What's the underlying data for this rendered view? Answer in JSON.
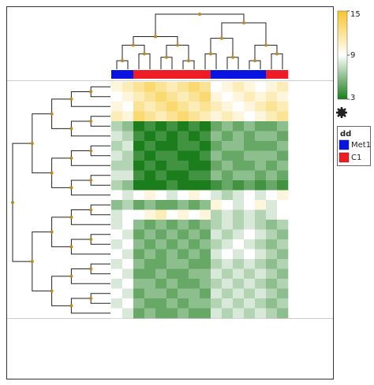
{
  "chart_data": {
    "type": "heatmap",
    "matrix": [
      [
        10,
        11,
        12,
        13,
        12,
        11,
        12,
        13,
        12,
        9,
        10,
        11,
        10,
        9,
        10,
        11
      ],
      [
        9,
        10,
        11,
        12,
        13,
        12,
        11,
        12,
        13,
        10,
        9,
        10,
        11,
        10,
        11,
        10
      ],
      [
        10,
        9,
        12,
        11,
        12,
        13,
        12,
        11,
        12,
        11,
        10,
        9,
        10,
        11,
        12,
        11
      ],
      [
        11,
        10,
        13,
        12,
        11,
        12,
        13,
        12,
        11,
        10,
        11,
        10,
        9,
        10,
        11,
        12
      ],
      [
        7,
        6,
        3,
        4,
        3,
        4,
        3,
        4,
        3,
        5,
        6,
        5,
        6,
        5,
        5,
        6
      ],
      [
        8,
        7,
        4,
        3,
        4,
        3,
        4,
        3,
        4,
        6,
        5,
        6,
        5,
        6,
        6,
        5
      ],
      [
        7,
        8,
        3,
        4,
        3,
        3,
        4,
        4,
        3,
        5,
        6,
        6,
        5,
        5,
        5,
        6
      ],
      [
        8,
        7,
        4,
        3,
        4,
        4,
        3,
        3,
        4,
        6,
        5,
        5,
        6,
        6,
        6,
        5
      ],
      [
        7,
        7,
        3,
        4,
        3,
        4,
        4,
        3,
        3,
        5,
        6,
        5,
        5,
        6,
        5,
        6
      ],
      [
        8,
        8,
        4,
        3,
        4,
        3,
        3,
        4,
        4,
        6,
        5,
        6,
        6,
        5,
        6,
        5
      ],
      [
        7,
        6,
        3,
        3,
        3,
        4,
        3,
        3,
        3,
        4,
        5,
        4,
        5,
        4,
        5,
        4
      ],
      [
        9,
        8,
        9,
        10,
        9,
        8,
        9,
        10,
        9,
        8,
        7,
        8,
        9,
        8,
        9,
        10
      ],
      [
        6,
        7,
        5,
        6,
        5,
        5,
        6,
        5,
        6,
        10,
        9,
        8,
        9,
        10,
        8,
        9
      ],
      [
        8,
        9,
        9,
        10,
        11,
        9,
        10,
        9,
        10,
        7,
        8,
        7,
        8,
        7,
        8,
        9
      ],
      [
        8,
        9,
        6,
        5,
        6,
        5,
        6,
        5,
        6,
        7,
        8,
        7,
        8,
        7,
        6,
        7
      ],
      [
        9,
        8,
        5,
        6,
        5,
        6,
        5,
        6,
        5,
        8,
        7,
        8,
        9,
        8,
        7,
        6
      ],
      [
        8,
        9,
        6,
        5,
        6,
        5,
        6,
        5,
        6,
        7,
        8,
        9,
        8,
        7,
        6,
        7
      ],
      [
        9,
        8,
        5,
        6,
        5,
        6,
        5,
        6,
        5,
        8,
        9,
        8,
        9,
        8,
        7,
        6
      ],
      [
        8,
        9,
        6,
        5,
        5,
        6,
        6,
        5,
        5,
        7,
        8,
        7,
        8,
        7,
        6,
        7
      ],
      [
        9,
        8,
        5,
        5,
        6,
        5,
        5,
        6,
        6,
        8,
        7,
        8,
        7,
        8,
        7,
        6
      ],
      [
        8,
        9,
        6,
        6,
        5,
        6,
        5,
        5,
        6,
        7,
        8,
        7,
        8,
        7,
        6,
        7
      ],
      [
        9,
        8,
        5,
        6,
        6,
        5,
        6,
        6,
        5,
        8,
        7,
        8,
        7,
        8,
        7,
        6
      ],
      [
        8,
        9,
        6,
        5,
        5,
        6,
        5,
        6,
        6,
        7,
        8,
        7,
        8,
        7,
        6,
        7
      ],
      [
        9,
        8,
        5,
        6,
        5,
        5,
        6,
        5,
        5,
        8,
        7,
        8,
        7,
        8,
        7,
        6
      ]
    ],
    "column_groups": [
      "Met1",
      "Met1",
      "C1",
      "C1",
      "C1",
      "C1",
      "C1",
      "C1",
      "C1",
      "Met1",
      "Met1",
      "Met1",
      "Met1",
      "Met1",
      "C1",
      "C1"
    ],
    "legend": {
      "title": "dd",
      "names": [
        "Met1",
        "C1"
      ],
      "colors": [
        "#0a14e0",
        "#ee1c24"
      ]
    },
    "clim": [
      3,
      15
    ],
    "colorbar_ticks": [
      15,
      9,
      3
    ],
    "colors": {
      "low": "#1b7d1b",
      "mid": "#ffffff",
      "high": "#f7c62a"
    }
  }
}
